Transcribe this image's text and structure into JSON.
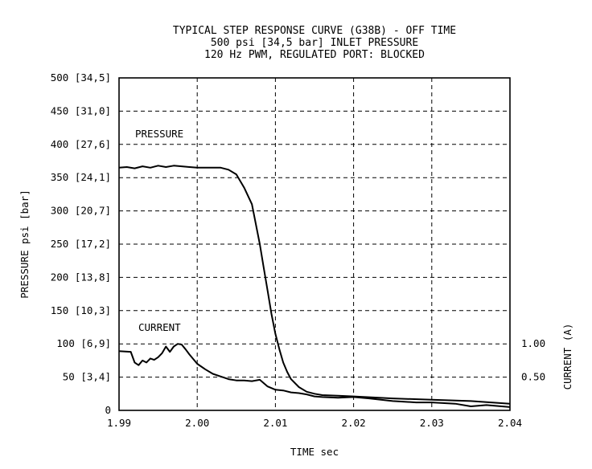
{
  "chart_data": {
    "type": "line",
    "title": "TYPICAL STEP RESPONSE CURVE (G38B) - OFF TIME",
    "subtitle_lines": [
      "500 psi [34,5 bar] INLET PRESSURE",
      "120 Hz PWM, REGULATED PORT: BLOCKED"
    ],
    "xlabel": "TIME sec",
    "ylabel": "PRESSURE psi [bar]",
    "y2label": "CURRENT (A)",
    "xlim": [
      1.99,
      2.04
    ],
    "ylim": [
      0,
      500
    ],
    "y2lim": [
      0,
      1.0
    ],
    "x_ticks": [
      "1.99",
      "2.00",
      "2.01",
      "2.02",
      "2.03",
      "2.04"
    ],
    "y_ticks": [
      "0",
      "50 [3,4]",
      "100 [6,9]",
      "150 [10,3]",
      "200 [13,8]",
      "250 [17,2]",
      "300 [20,7]",
      "350 [24,1]",
      "400 [27,6]",
      "450 [31,0]",
      "500 [34,5]"
    ],
    "y2_ticks": [
      "1.00",
      "0.50"
    ],
    "grid": true,
    "series": [
      {
        "name": "PRESSURE",
        "color": "#000000",
        "x": [
          1.99,
          1.991,
          1.992,
          1.993,
          1.994,
          1.995,
          1.996,
          1.997,
          1.998,
          1.999,
          2.0,
          2.001,
          2.002,
          2.003,
          2.004,
          2.005,
          2.006,
          2.007,
          2.008,
          2.0085,
          2.009,
          2.0095,
          2.01,
          2.0105,
          2.011,
          2.0115,
          2.012,
          2.013,
          2.014,
          2.015,
          2.016,
          2.018,
          2.02,
          2.025,
          2.03,
          2.035,
          2.04
        ],
        "values": [
          365,
          366,
          364,
          367,
          365,
          368,
          366,
          368,
          367,
          366,
          365,
          365,
          365,
          365,
          362,
          355,
          335,
          310,
          250,
          215,
          180,
          145,
          115,
          92,
          72,
          58,
          47,
          35,
          28,
          25,
          23,
          22,
          21,
          18,
          16,
          14,
          10
        ]
      },
      {
        "name": "CURRENT",
        "color": "#000000",
        "x": [
          1.99,
          1.9915,
          1.992,
          1.9925,
          1.993,
          1.9935,
          1.994,
          1.9945,
          1.995,
          1.9955,
          1.996,
          1.9965,
          1.997,
          1.9975,
          1.998,
          1.9985,
          1.999,
          2.0,
          2.001,
          2.002,
          2.003,
          2.004,
          2.005,
          2.006,
          2.007,
          2.008,
          2.009,
          2.01,
          2.011,
          2.012,
          2.013,
          2.014,
          2.015,
          2.016,
          2.018,
          2.02,
          2.022,
          2.025,
          2.028,
          2.03,
          2.033,
          2.035,
          2.037,
          2.04
        ],
        "values": [
          0.89,
          0.88,
          0.72,
          0.68,
          0.75,
          0.72,
          0.78,
          0.76,
          0.8,
          0.86,
          0.96,
          0.88,
          0.96,
          1.0,
          0.99,
          0.92,
          0.84,
          0.7,
          0.62,
          0.55,
          0.51,
          0.47,
          0.45,
          0.45,
          0.44,
          0.46,
          0.36,
          0.31,
          0.3,
          0.27,
          0.26,
          0.24,
          0.21,
          0.2,
          0.19,
          0.2,
          0.18,
          0.14,
          0.12,
          0.12,
          0.1,
          0.06,
          0.08,
          0.05
        ]
      }
    ],
    "annotations": [
      "PRESSURE",
      "CURRENT"
    ]
  }
}
